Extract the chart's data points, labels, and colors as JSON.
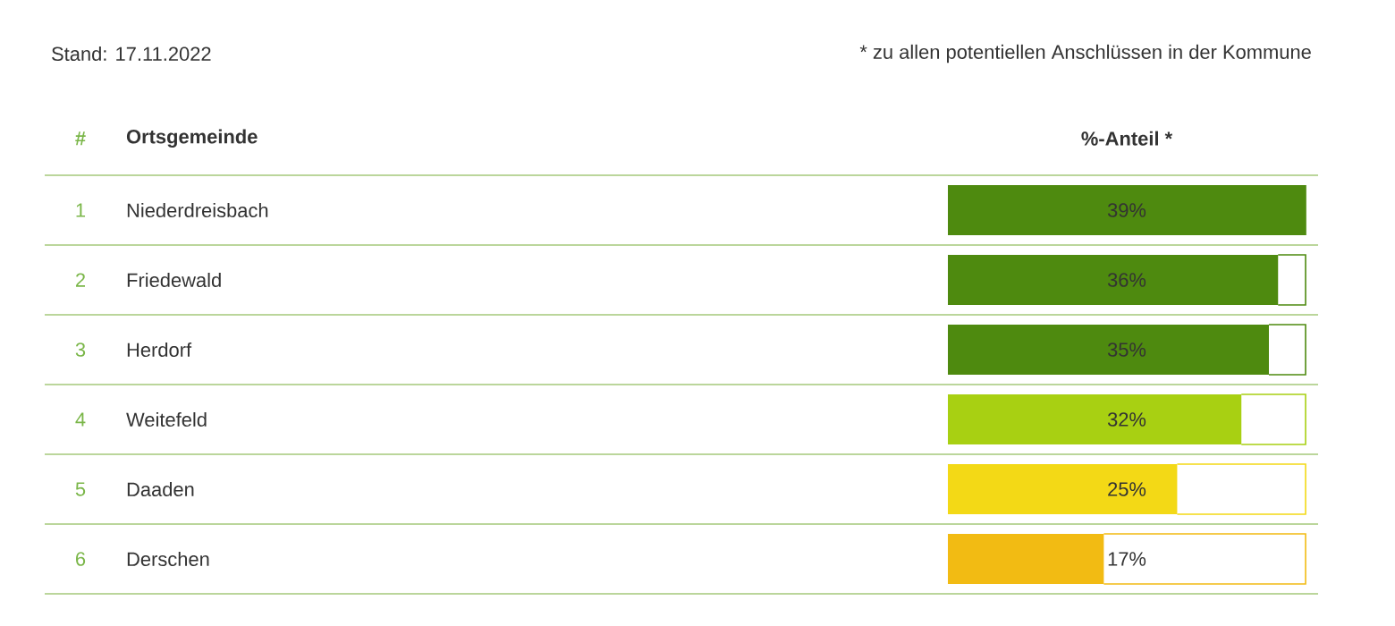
{
  "chart_data": {
    "type": "bar",
    "orientation": "horizontal",
    "title": "Stand: 17.11.2022",
    "subtitle": "* zu allen potentiellen Anschlüssen in der Kommune",
    "ylabel": "Ortsgemeinde",
    "xlabel": "%-Anteil *",
    "annotations": [
      "#",
      "1",
      "2",
      "3",
      "4",
      "5",
      "6"
    ],
    "categories": [
      "Niederdreisbach",
      "Friedewald",
      "Herdorf",
      "Weitefeld",
      "Daaden",
      "Derschen"
    ],
    "values": [
      39,
      36,
      35,
      32,
      25,
      17
    ],
    "value_labels": [
      "39%",
      "36%",
      "35%",
      "32%",
      "25%",
      "17%"
    ],
    "colors": [
      "#4e8a0f",
      "#4e8a0f",
      "#4e8a0f",
      "#a8d012",
      "#f3d916",
      "#f2bb13"
    ],
    "xlim": [
      0,
      39
    ],
    "tick_labels": false
  }
}
